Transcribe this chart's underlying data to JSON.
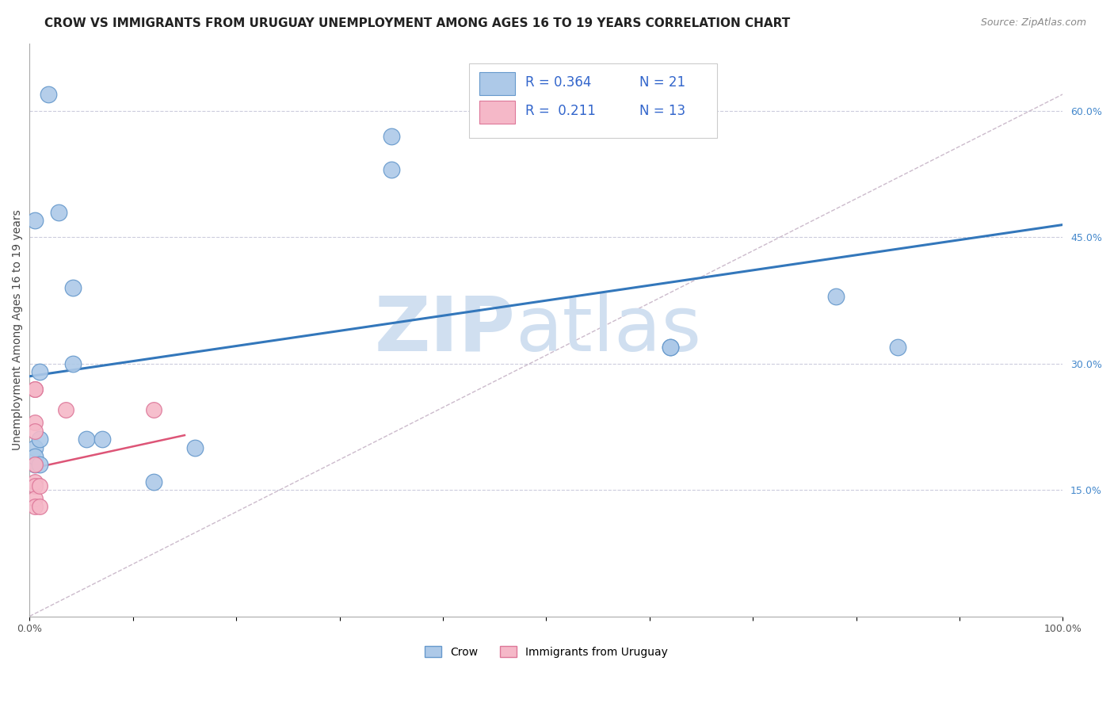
{
  "title": "CROW VS IMMIGRANTS FROM URUGUAY UNEMPLOYMENT AMONG AGES 16 TO 19 YEARS CORRELATION CHART",
  "source": "Source: ZipAtlas.com",
  "ylabel": "Unemployment Among Ages 16 to 19 years",
  "xlim": [
    0,
    1.0
  ],
  "ylim": [
    0,
    0.68
  ],
  "xticks": [
    0.0,
    0.1,
    0.2,
    0.3,
    0.4,
    0.5,
    0.6,
    0.7,
    0.8,
    0.9,
    1.0
  ],
  "xticklabels": [
    "0.0%",
    "",
    "",
    "",
    "",
    "",
    "",
    "",
    "",
    "",
    "100.0%"
  ],
  "yticks_right": [
    0.0,
    0.15,
    0.3,
    0.45,
    0.6
  ],
  "ytick_right_labels": [
    "",
    "15.0%",
    "30.0%",
    "45.0%",
    "60.0%"
  ],
  "crow_x": [
    0.005,
    0.018,
    0.028,
    0.042,
    0.042,
    0.055,
    0.07,
    0.005,
    0.005,
    0.005,
    0.01,
    0.01,
    0.01,
    0.16,
    0.35,
    0.35,
    0.62,
    0.62,
    0.78,
    0.84,
    0.12
  ],
  "crow_y": [
    0.47,
    0.62,
    0.48,
    0.39,
    0.3,
    0.21,
    0.21,
    0.2,
    0.18,
    0.19,
    0.29,
    0.21,
    0.18,
    0.2,
    0.57,
    0.53,
    0.32,
    0.32,
    0.38,
    0.32,
    0.16
  ],
  "uru_x": [
    0.005,
    0.005,
    0.005,
    0.005,
    0.005,
    0.005,
    0.005,
    0.005,
    0.005,
    0.01,
    0.01,
    0.035,
    0.12
  ],
  "uru_y": [
    0.27,
    0.27,
    0.23,
    0.22,
    0.18,
    0.16,
    0.155,
    0.14,
    0.13,
    0.155,
    0.13,
    0.245,
    0.245
  ],
  "crow_R": 0.364,
  "crow_N": 21,
  "uru_R": 0.211,
  "uru_N": 13,
  "crow_line_x": [
    0.0,
    1.0
  ],
  "crow_line_y": [
    0.285,
    0.465
  ],
  "uru_line_x": [
    0.0,
    0.15
  ],
  "uru_line_y": [
    0.175,
    0.215
  ],
  "diag_line_x": [
    0.0,
    1.0
  ],
  "diag_line_y": [
    0.0,
    0.62
  ],
  "crow_color": "#adc9e8",
  "crow_edge_color": "#6699cc",
  "uru_color": "#f5b8c8",
  "uru_edge_color": "#dd7799",
  "crow_line_color": "#3377bb",
  "uru_line_color": "#dd5577",
  "diag_line_color": "#ccbbcc",
  "watermark_zip": "ZIP",
  "watermark_atlas": "atlas",
  "watermark_color": "#d0dff0",
  "background_color": "#ffffff",
  "grid_color": "#ccccdd",
  "legend_R_color": "#3366cc",
  "legend_N_color": "#3366cc",
  "title_fontsize": 11,
  "source_fontsize": 9,
  "ylabel_fontsize": 10,
  "tick_fontsize": 9,
  "legend_fontsize": 12
}
